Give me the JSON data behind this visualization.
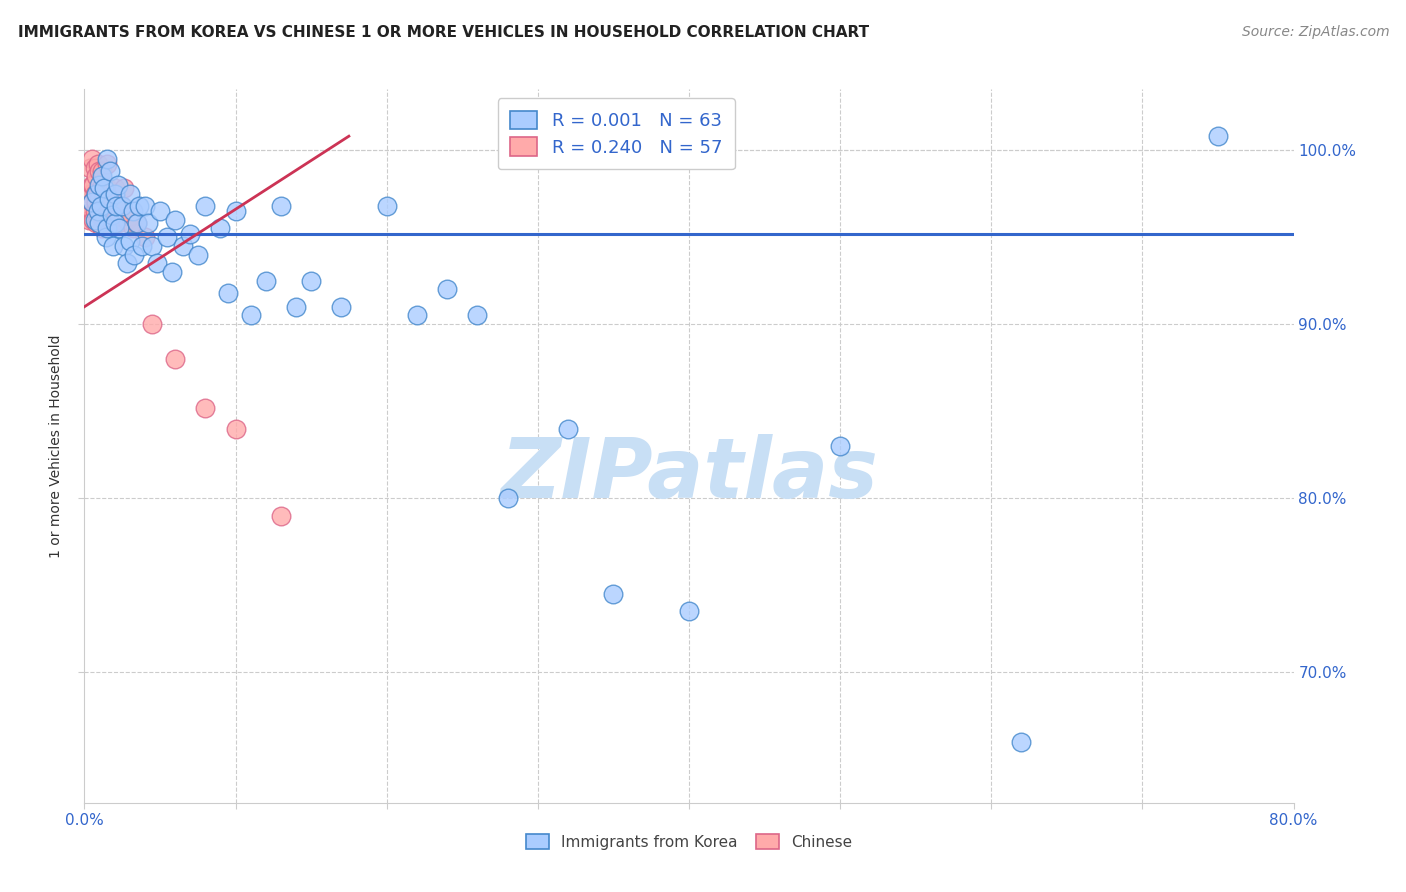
{
  "title": "IMMIGRANTS FROM KOREA VS CHINESE 1 OR MORE VEHICLES IN HOUSEHOLD CORRELATION CHART",
  "source": "Source: ZipAtlas.com",
  "ylabel": "1 or more Vehicles in Household",
  "xlim": [
    0.0,
    0.8
  ],
  "ylim": [
    0.625,
    1.035
  ],
  "ytick_positions": [
    0.7,
    0.8,
    0.9,
    1.0
  ],
  "ytick_labels": [
    "70.0%",
    "80.0%",
    "90.0%",
    "100.0%"
  ],
  "xtick_positions": [
    0.0,
    0.1,
    0.2,
    0.3,
    0.4,
    0.5,
    0.6,
    0.7,
    0.8
  ],
  "legend_korea_R": "0.001",
  "legend_korea_N": "63",
  "legend_chinese_R": "0.240",
  "legend_chinese_N": "57",
  "korea_face_color": "#aaccff",
  "korea_edge_color": "#4488cc",
  "chinese_face_color": "#ffaaaa",
  "chinese_edge_color": "#dd6688",
  "korea_line_color": "#3366cc",
  "chinese_line_color": "#cc3355",
  "korea_hline_y": 0.952,
  "chinese_trend_x": [
    0.0,
    0.175
  ],
  "chinese_trend_y": [
    0.91,
    1.008
  ],
  "korea_scatter_x": [
    0.005,
    0.007,
    0.008,
    0.009,
    0.01,
    0.01,
    0.011,
    0.012,
    0.013,
    0.014,
    0.015,
    0.015,
    0.016,
    0.017,
    0.018,
    0.019,
    0.02,
    0.02,
    0.021,
    0.022,
    0.023,
    0.025,
    0.026,
    0.028,
    0.03,
    0.03,
    0.032,
    0.033,
    0.035,
    0.036,
    0.038,
    0.04,
    0.042,
    0.045,
    0.048,
    0.05,
    0.055,
    0.058,
    0.06,
    0.065,
    0.07,
    0.075,
    0.08,
    0.09,
    0.095,
    0.1,
    0.11,
    0.12,
    0.13,
    0.14,
    0.15,
    0.17,
    0.2,
    0.22,
    0.24,
    0.26,
    0.28,
    0.32,
    0.35,
    0.4,
    0.5,
    0.62,
    0.75
  ],
  "korea_scatter_y": [
    0.97,
    0.96,
    0.975,
    0.965,
    0.98,
    0.958,
    0.968,
    0.985,
    0.978,
    0.95,
    0.995,
    0.955,
    0.972,
    0.988,
    0.963,
    0.945,
    0.975,
    0.958,
    0.968,
    0.98,
    0.955,
    0.968,
    0.945,
    0.935,
    0.975,
    0.948,
    0.965,
    0.94,
    0.958,
    0.968,
    0.945,
    0.968,
    0.958,
    0.945,
    0.935,
    0.965,
    0.95,
    0.93,
    0.96,
    0.945,
    0.952,
    0.94,
    0.968,
    0.955,
    0.918,
    0.965,
    0.905,
    0.925,
    0.968,
    0.91,
    0.925,
    0.91,
    0.968,
    0.905,
    0.92,
    0.905,
    0.8,
    0.84,
    0.745,
    0.735,
    0.83,
    0.66,
    1.008
  ],
  "chinese_scatter_x": [
    0.003,
    0.004,
    0.004,
    0.005,
    0.005,
    0.005,
    0.005,
    0.006,
    0.006,
    0.007,
    0.007,
    0.007,
    0.008,
    0.008,
    0.008,
    0.009,
    0.009,
    0.009,
    0.01,
    0.01,
    0.01,
    0.011,
    0.011,
    0.012,
    0.012,
    0.012,
    0.013,
    0.013,
    0.014,
    0.014,
    0.015,
    0.015,
    0.015,
    0.016,
    0.016,
    0.017,
    0.017,
    0.018,
    0.018,
    0.019,
    0.02,
    0.02,
    0.021,
    0.022,
    0.023,
    0.025,
    0.026,
    0.028,
    0.03,
    0.032,
    0.035,
    0.04,
    0.045,
    0.06,
    0.08,
    0.1,
    0.13
  ],
  "chinese_scatter_y": [
    0.96,
    0.975,
    0.99,
    0.965,
    0.98,
    0.995,
    0.97,
    0.96,
    0.98,
    0.965,
    0.975,
    0.99,
    0.958,
    0.97,
    0.985,
    0.96,
    0.975,
    0.992,
    0.958,
    0.972,
    0.988,
    0.962,
    0.978,
    0.955,
    0.97,
    0.988,
    0.96,
    0.975,
    0.958,
    0.972,
    0.962,
    0.978,
    0.992,
    0.958,
    0.975,
    0.96,
    0.975,
    0.958,
    0.972,
    0.965,
    0.96,
    0.978,
    0.972,
    0.958,
    0.962,
    0.968,
    0.978,
    0.96,
    0.962,
    0.955,
    0.958,
    0.95,
    0.9,
    0.88,
    0.852,
    0.84,
    0.79
  ],
  "watermark_text": "ZIPatlas",
  "watermark_color": "#c8dff5",
  "background_color": "#ffffff",
  "grid_color": "#cccccc",
  "title_fontsize": 11,
  "source_fontsize": 10,
  "legend_fontsize": 13,
  "axis_label_color": "#3366cc",
  "title_color": "#222222"
}
